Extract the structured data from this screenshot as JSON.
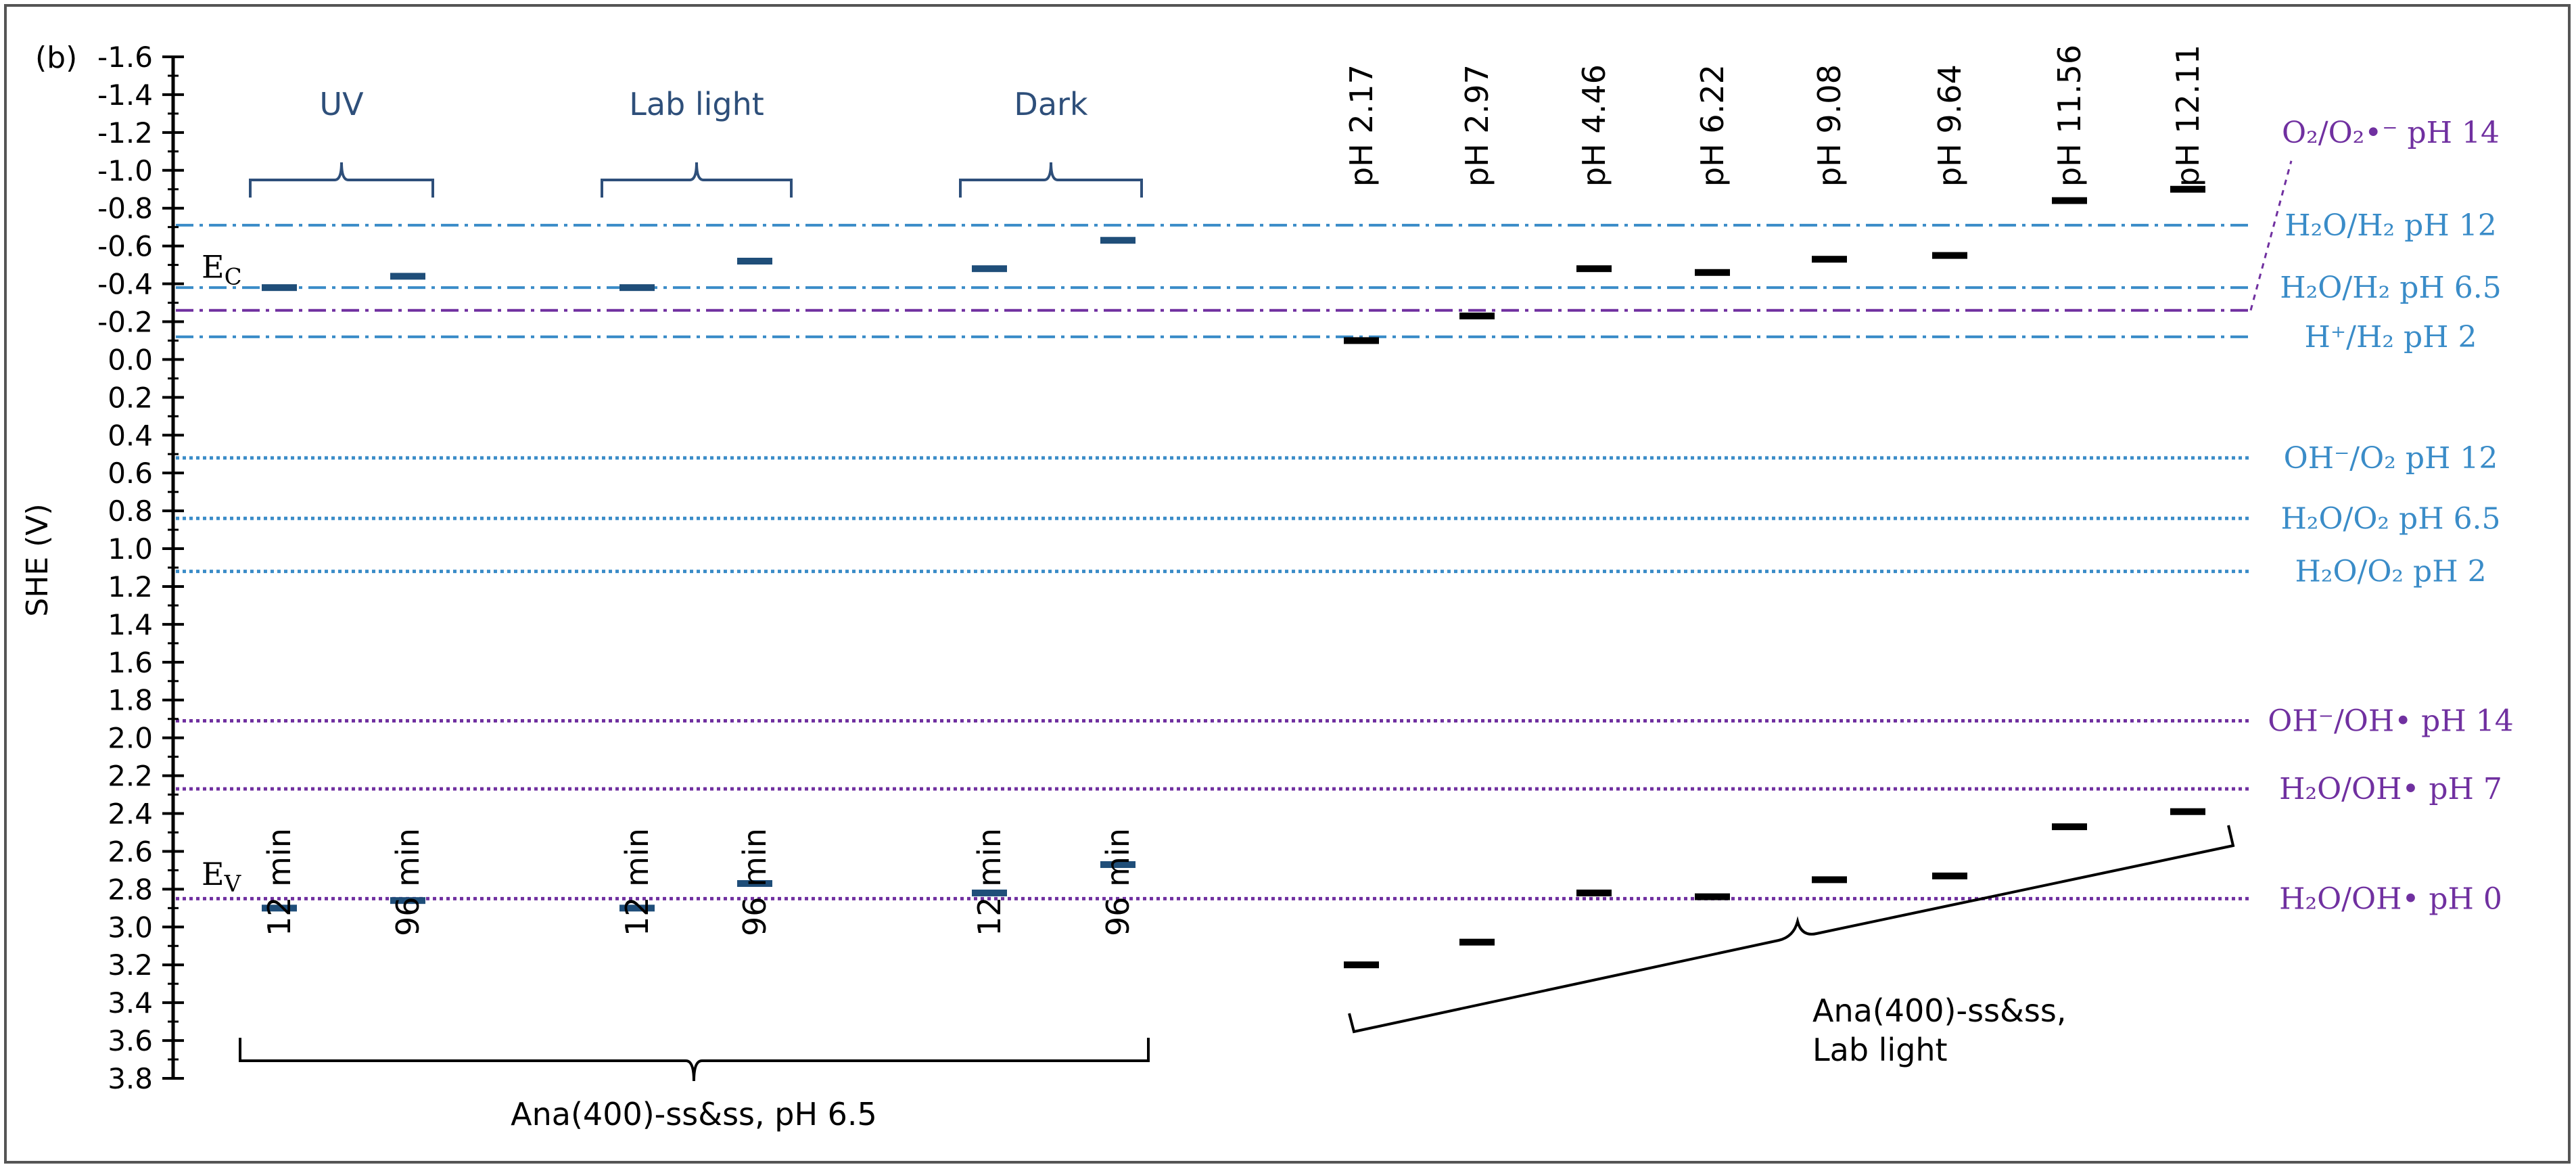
{
  "panel_label": "(b)",
  "colors": {
    "axis": "#000000",
    "dark_blue": "#1F4E79",
    "brace_blue": "#2E4F7A",
    "light_blue": "#3A8CC8",
    "purple": "#7030A0",
    "black": "#000000"
  },
  "chart_data": {
    "type": "scatter",
    "ylabel": "SHE (V)",
    "ylim": [
      -1.6,
      3.8
    ],
    "y_inverted": true,
    "y_ticks": [
      "-1.6",
      "-1.4",
      "-1.2",
      "-1.0",
      "-0.8",
      "-0.6",
      "-0.4",
      "-0.2",
      "0.0",
      "0.2",
      "0.4",
      "0.6",
      "0.8",
      "1.0",
      "1.2",
      "1.4",
      "1.6",
      "1.8",
      "2.0",
      "2.2",
      "2.4",
      "2.6",
      "2.8",
      "3.0",
      "3.2",
      "3.4",
      "3.6",
      "3.8"
    ],
    "groups": [
      {
        "label": "UV",
        "times": [
          "12 min",
          "96 min"
        ],
        "ec": [
          -0.38,
          -0.44
        ],
        "ev": [
          2.9,
          2.86
        ]
      },
      {
        "label": "Lab light",
        "times": [
          "12 min",
          "96 min"
        ],
        "ec": [
          -0.38,
          -0.52
        ],
        "ev": [
          2.9,
          2.77
        ]
      },
      {
        "label": "Dark",
        "times": [
          "12 min",
          "96 min"
        ],
        "ec": [
          -0.48,
          -0.63
        ],
        "ev": [
          2.82,
          2.67
        ]
      }
    ],
    "left_series_label": "Ana(400)-ss&ss, pH 6.5",
    "ph_series": {
      "labels": [
        "pH 2.17",
        "pH 2.97",
        "pH 4.46",
        "pH 6.22",
        "pH 9.08",
        "pH 9.64",
        "pH 11.56",
        "pH 12.11"
      ],
      "ec": [
        -0.1,
        -0.23,
        -0.48,
        -0.46,
        -0.53,
        -0.55,
        -0.84,
        -0.9
      ],
      "ev": [
        3.2,
        3.08,
        2.82,
        2.84,
        2.75,
        2.73,
        2.47,
        2.39
      ],
      "label": "Ana(400)-ss&ss,\nLab light"
    },
    "band_labels": {
      "ec": "E",
      "ec_sub": "C",
      "ev": "E",
      "ev_sub": "V"
    },
    "reference_lines": [
      {
        "y": -0.71,
        "style": "dashdot",
        "color": "light_blue",
        "text": "H₂O/H₂ pH 12"
      },
      {
        "y": -0.38,
        "style": "dashdot",
        "color": "light_blue",
        "text": "H₂O/H₂ pH 6.5"
      },
      {
        "y": -0.26,
        "style": "dashdot",
        "color": "purple",
        "text": ""
      },
      {
        "y": -0.12,
        "style": "dashdot",
        "color": "light_blue",
        "text": "H⁺/H₂ pH 2"
      },
      {
        "y": 0.52,
        "style": "dotted",
        "color": "light_blue",
        "text": "OH⁻/O₂ pH 12"
      },
      {
        "y": 0.84,
        "style": "dotted",
        "color": "light_blue",
        "text": "H₂O/O₂ pH 6.5"
      },
      {
        "y": 1.12,
        "style": "dotted",
        "color": "light_blue",
        "text": "H₂O/O₂ pH 2"
      },
      {
        "y": 1.91,
        "style": "dotted",
        "color": "purple",
        "text": "OH⁻/OH• pH 14"
      },
      {
        "y": 2.27,
        "style": "dotted",
        "color": "purple",
        "text": "H₂O/OH• pH 7"
      },
      {
        "y": 2.85,
        "style": "dotted",
        "color": "purple",
        "text": "H₂O/OH• pH 0"
      }
    ],
    "top_label": "O₂/O₂•⁻ pH 14"
  }
}
